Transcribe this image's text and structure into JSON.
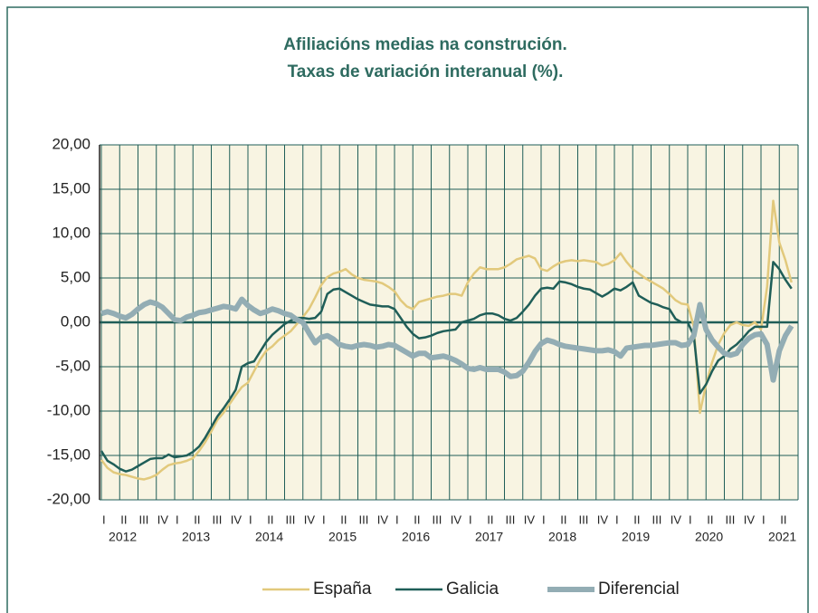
{
  "chart_data": {
    "type": "line",
    "title": "Afiliacións medias na construción.",
    "subtitle": "Taxas de variación interanual (%).",
    "categories": [
      "I",
      null,
      null,
      "II",
      null,
      null,
      "III",
      null,
      null,
      "IV",
      null,
      null,
      "I",
      null,
      null,
      "II",
      null,
      null,
      "III",
      null,
      null,
      "IV",
      null,
      null,
      "I",
      null,
      null,
      "II",
      null,
      null,
      "III",
      null,
      null,
      "IV",
      null,
      null,
      "I",
      null,
      null,
      "II",
      null,
      null,
      "III",
      null,
      null,
      "IV",
      null,
      null,
      "I",
      null,
      null,
      "II",
      null,
      null,
      "III",
      null,
      null,
      "IV",
      null,
      null,
      "I",
      null,
      null,
      "II",
      null,
      null,
      "III",
      null,
      null,
      "IV",
      null,
      null,
      "I",
      null,
      null,
      "II",
      null,
      null,
      "III",
      null,
      null,
      "IV",
      null,
      null,
      "I",
      null,
      null,
      "II",
      null,
      null,
      "III",
      null,
      null,
      "IV",
      null,
      null,
      "I",
      null,
      null,
      "II",
      null,
      null,
      "III",
      null,
      null,
      "IV",
      null,
      null,
      "I",
      null,
      null,
      "II",
      null,
      null
    ],
    "year_labels": [
      "2012",
      "2013",
      "2014",
      "2015",
      "2016",
      "2017",
      "2018",
      "2019",
      "2020",
      "2021"
    ],
    "series": [
      {
        "name": "España",
        "color": "#e2c97c",
        "width": 2.5,
        "values": [
          -15.5,
          -16.4,
          -16.9,
          -17.1,
          -17.2,
          -17.4,
          -17.6,
          -17.7,
          -17.5,
          -17.2,
          -16.6,
          -16.1,
          -15.9,
          -15.8,
          -15.6,
          -15.3,
          -14.5,
          -13.5,
          -12.3,
          -11,
          -10.2,
          -9.2,
          -8.2,
          -7.3,
          -6.8,
          -5.5,
          -4.2,
          -3.2,
          -2.7,
          -2,
          -1.5,
          -1,
          -0.2,
          0.6,
          1.5,
          2.8,
          4.2,
          5.1,
          5.5,
          5.7,
          6,
          5.4,
          5,
          4.8,
          4.7,
          4.6,
          4.4,
          4,
          3.5,
          2.5,
          1.8,
          1.5,
          2.3,
          2.5,
          2.7,
          2.9,
          3,
          3.2,
          3.2,
          3,
          4.5,
          5.5,
          6.2,
          6,
          6,
          6,
          6.2,
          6.6,
          7.1,
          7.3,
          7.5,
          7.2,
          6,
          5.8,
          6.3,
          6.7,
          6.9,
          7,
          6.9,
          7,
          6.9,
          6.8,
          6.4,
          6.6,
          7,
          7.8,
          6.8,
          6,
          5.5,
          5,
          4.6,
          4.2,
          3.8,
          3.2,
          2.5,
          2.1,
          2,
          -0.5,
          -10.2,
          -7,
          -4.5,
          -2.5,
          -1.2,
          -0.3,
          0,
          -0.3,
          -0.4,
          0,
          -0.8,
          4,
          13.7,
          9,
          7,
          4.5
        ]
      },
      {
        "name": "Galicia",
        "color": "#1f5e58",
        "width": 2.5,
        "values": [
          -14.5,
          -15.6,
          -16,
          -16.5,
          -16.8,
          -16.6,
          -16.2,
          -15.8,
          -15.4,
          -15.3,
          -15.3,
          -14.9,
          -15.2,
          -15.1,
          -15,
          -14.6,
          -14,
          -13,
          -11.8,
          -10.6,
          -9.7,
          -8.7,
          -7.6,
          -5,
          -4.6,
          -4.4,
          -3.3,
          -2.2,
          -1.4,
          -0.8,
          -0.2,
          0.2,
          0.5,
          0.5,
          0.4,
          0.5,
          1.2,
          3.2,
          3.7,
          3.8,
          3.4,
          3,
          2.6,
          2.3,
          2,
          1.9,
          1.8,
          1.8,
          1.5,
          0.5,
          -0.5,
          -1.3,
          -1.8,
          -1.7,
          -1.5,
          -1.2,
          -1,
          -0.9,
          -0.8,
          0,
          0.2,
          0.4,
          0.8,
          1,
          1,
          0.8,
          0.4,
          0.2,
          0.5,
          1.2,
          2,
          3,
          3.8,
          3.9,
          3.8,
          4.6,
          4.5,
          4.3,
          4,
          3.8,
          3.7,
          3.3,
          2.9,
          3.3,
          3.8,
          3.6,
          4,
          4.5,
          3,
          2.6,
          2.2,
          2,
          1.7,
          1.5,
          0.4,
          0,
          0,
          -1.5,
          -8,
          -7,
          -5.5,
          -4.3,
          -3.8,
          -3,
          -2.5,
          -1.8,
          -1,
          -0.5,
          -0.5,
          -0.5,
          6.8,
          6,
          4.8,
          3.8
        ]
      },
      {
        "name": "Diferencial",
        "color": "#93adb4",
        "width": 6,
        "values": [
          1,
          1.2,
          1,
          0.7,
          0.5,
          0.9,
          1.5,
          2,
          2.3,
          2.1,
          1.7,
          1,
          0.3,
          0.2,
          0.6,
          0.8,
          1.1,
          1.2,
          1.4,
          1.6,
          1.8,
          1.7,
          1.5,
          2.6,
          1.9,
          1.4,
          1,
          1.2,
          1.5,
          1.3,
          1,
          0.8,
          0.3,
          0,
          -1.2,
          -2.3,
          -1.7,
          -1.5,
          -1.9,
          -2.5,
          -2.7,
          -2.8,
          -2.6,
          -2.5,
          -2.6,
          -2.8,
          -2.7,
          -2.5,
          -2.6,
          -3,
          -3.4,
          -3.8,
          -3.5,
          -3.5,
          -4,
          -3.9,
          -3.8,
          -4,
          -4.3,
          -4.7,
          -5.2,
          -5.3,
          -5.1,
          -5.3,
          -5.3,
          -5.3,
          -5.6,
          -6.1,
          -6,
          -5.5,
          -4.5,
          -3.3,
          -2.4,
          -2,
          -2.2,
          -2.5,
          -2.7,
          -2.8,
          -2.9,
          -3,
          -3.1,
          -3.2,
          -3.2,
          -3.1,
          -3.3,
          -3.8,
          -2.9,
          -2.8,
          -2.7,
          -2.6,
          -2.6,
          -2.5,
          -2.4,
          -2.3,
          -2.3,
          -2.6,
          -2.5,
          -1.5,
          2,
          -0.8,
          -2,
          -2.8,
          -3.5,
          -3.7,
          -3.5,
          -2.5,
          -1.8,
          -1.4,
          -1.3,
          -2.5,
          -6.5,
          -3.2,
          -1.5,
          -0.4
        ]
      }
    ],
    "ylim": [
      -20,
      20
    ],
    "yticks": [
      {
        "value": -20,
        "label": "-20,00"
      },
      {
        "value": -15,
        "label": "-15,00"
      },
      {
        "value": -10,
        "label": "-10,00"
      },
      {
        "value": -5,
        "label": "-5,00"
      },
      {
        "value": 0,
        "label": "0,00"
      },
      {
        "value": 5,
        "label": "5,00"
      },
      {
        "value": 10,
        "label": "10,00"
      },
      {
        "value": 15,
        "label": "15,00"
      },
      {
        "value": 20,
        "label": "20,00"
      }
    ],
    "grid": true,
    "legend": "bottom"
  }
}
